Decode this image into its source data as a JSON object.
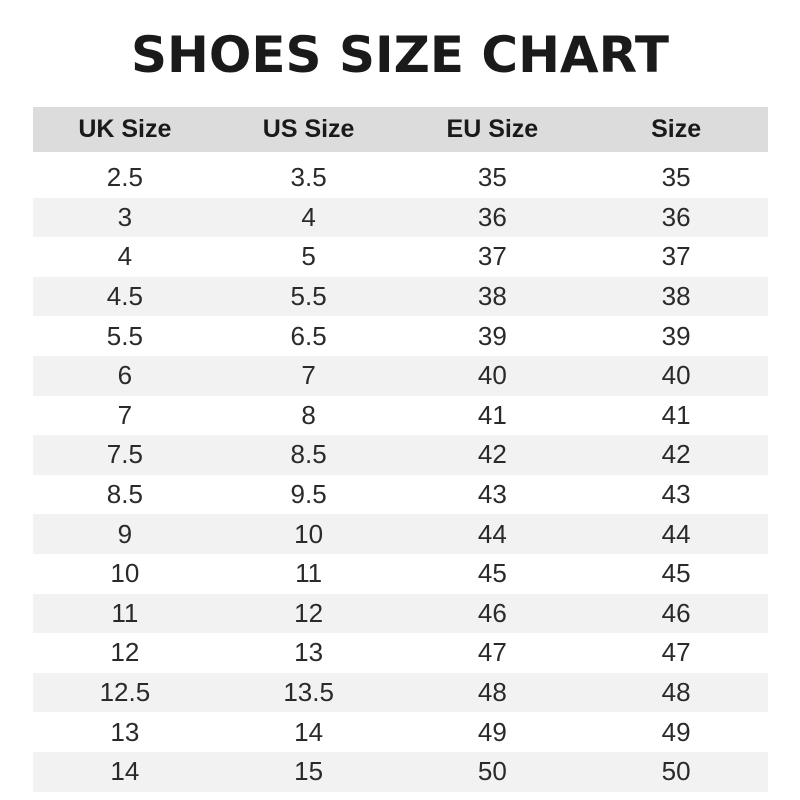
{
  "title": "SHOES SIZE CHART",
  "table": {
    "headers": [
      "UK Size",
      "US Size",
      "EU Size",
      "Size"
    ],
    "rows": [
      [
        "2.5",
        "3.5",
        "35",
        "35"
      ],
      [
        "3",
        "4",
        "36",
        "36"
      ],
      [
        "4",
        "5",
        "37",
        "37"
      ],
      [
        "4.5",
        "5.5",
        "38",
        "38"
      ],
      [
        "5.5",
        "6.5",
        "39",
        "39"
      ],
      [
        "6",
        "7",
        "40",
        "40"
      ],
      [
        "7",
        "8",
        "41",
        "41"
      ],
      [
        "7.5",
        "8.5",
        "42",
        "42"
      ],
      [
        "8.5",
        "9.5",
        "43",
        "43"
      ],
      [
        "9",
        "10",
        "44",
        "44"
      ],
      [
        "10",
        "11",
        "45",
        "45"
      ],
      [
        "11",
        "12",
        "46",
        "46"
      ],
      [
        "12",
        "13",
        "47",
        "47"
      ],
      [
        "12.5",
        "13.5",
        "48",
        "48"
      ],
      [
        "13",
        "14",
        "49",
        "49"
      ],
      [
        "14",
        "15",
        "50",
        "50"
      ]
    ]
  },
  "colors": {
    "header_bg": "#dcdcdc",
    "stripe_bg": "#f2f2f2",
    "text": "#2a2a2a"
  }
}
